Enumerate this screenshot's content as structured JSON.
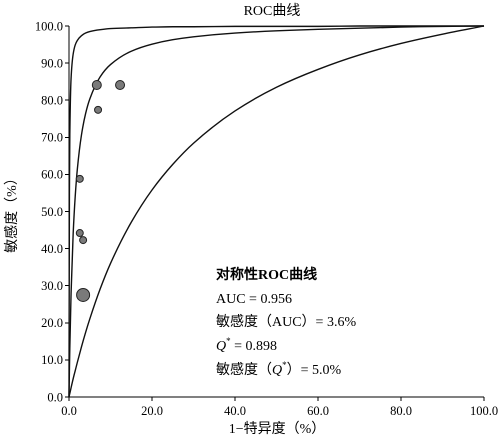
{
  "chart_data": {
    "type": "line",
    "title": "ROC曲线",
    "xlabel": "1−特异度（%）",
    "ylabel": "敏感度（%）",
    "xlim": [
      0,
      100
    ],
    "ylim": [
      0,
      100
    ],
    "xticks": [
      "0.0",
      "20.0",
      "40.0",
      "60.0",
      "80.0",
      "100.0"
    ],
    "yticks": [
      "0.0",
      "10.0",
      "20.0",
      "30.0",
      "40.0",
      "50.0",
      "60.0",
      "70.0",
      "80.0",
      "90.0",
      "100.0"
    ],
    "grid": false,
    "x": [
      0,
      0.1,
      0.2,
      0.5,
      1,
      1.5,
      2,
      3,
      4,
      5,
      7.5,
      10,
      15,
      20,
      25,
      30,
      40,
      50,
      60,
      70,
      80,
      90,
      100
    ],
    "series": [
      {
        "values": [
          0,
          54.8,
          70.8,
          85.9,
          92.4,
          94.9,
          96.1,
          97.4,
          98.1,
          98.5,
          99.0,
          99.3,
          99.5,
          99.7,
          99.8,
          99.8,
          99.9,
          99.9,
          99.9,
          100,
          100,
          100,
          100
        ]
      },
      {
        "values": [
          0,
          7.2,
          13.4,
          28.0,
          43.9,
          54.1,
          61.3,
          70.6,
          76.4,
          80.3,
          86.3,
          89.6,
          93.2,
          95.1,
          96.3,
          97.1,
          98.1,
          98.7,
          99.1,
          99.4,
          99.7,
          99.9,
          100
        ]
      },
      {
        "values": [
          0,
          0.5,
          1.0,
          2.5,
          4.9,
          7.1,
          9.3,
          13.5,
          17.4,
          21.0,
          29.1,
          36.0,
          47.1,
          55.8,
          62.7,
          68.4,
          77.1,
          83.5,
          88.3,
          92.2,
          95.3,
          97.8,
          100
        ]
      }
    ],
    "points": [
      {
        "x": 3.4,
        "y": 27.5,
        "size": "large"
      },
      {
        "x": 2.6,
        "y": 44.2,
        "size": "small"
      },
      {
        "x": 3.4,
        "y": 42.3,
        "size": "small"
      },
      {
        "x": 2.6,
        "y": 58.8,
        "size": "small"
      },
      {
        "x": 7.0,
        "y": 77.4,
        "size": "small"
      },
      {
        "x": 6.7,
        "y": 84.1,
        "size": "medium"
      },
      {
        "x": 12.3,
        "y": 84.1,
        "size": "medium"
      }
    ],
    "annotation": {
      "heading": "对称性ROC曲线",
      "auc": "AUC = 0.956",
      "se_auc": "敏感度（AUC）= 3.6%",
      "q_symbol": "Q",
      "q_sup": "*",
      "q_value": " = 0.898",
      "se_q_prefix": "敏感度（",
      "se_q_suffix": "）= 5.0%"
    },
    "colors": {
      "curve": "#111111",
      "axis": "#000000",
      "point_fill": "#7a7a7a",
      "point_stroke": "#222222"
    }
  }
}
